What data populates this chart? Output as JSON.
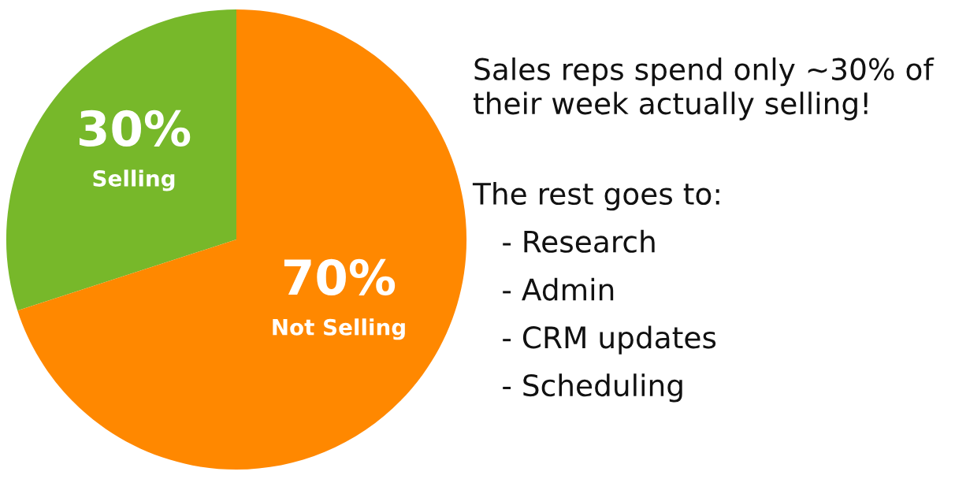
{
  "chart_data": {
    "type": "pie",
    "categories": [
      "Selling",
      "Not Selling"
    ],
    "values": [
      30,
      70
    ],
    "colors": [
      "#77b82a",
      "#ff8800"
    ],
    "value_labels": [
      "30%",
      "70%"
    ],
    "annotations": [
      "Sales reps spend only ~30% of\ntheir week actually selling!",
      "The rest goes to:",
      "- Research",
      "- Admin",
      "- CRM updates",
      "- Scheduling"
    ]
  }
}
